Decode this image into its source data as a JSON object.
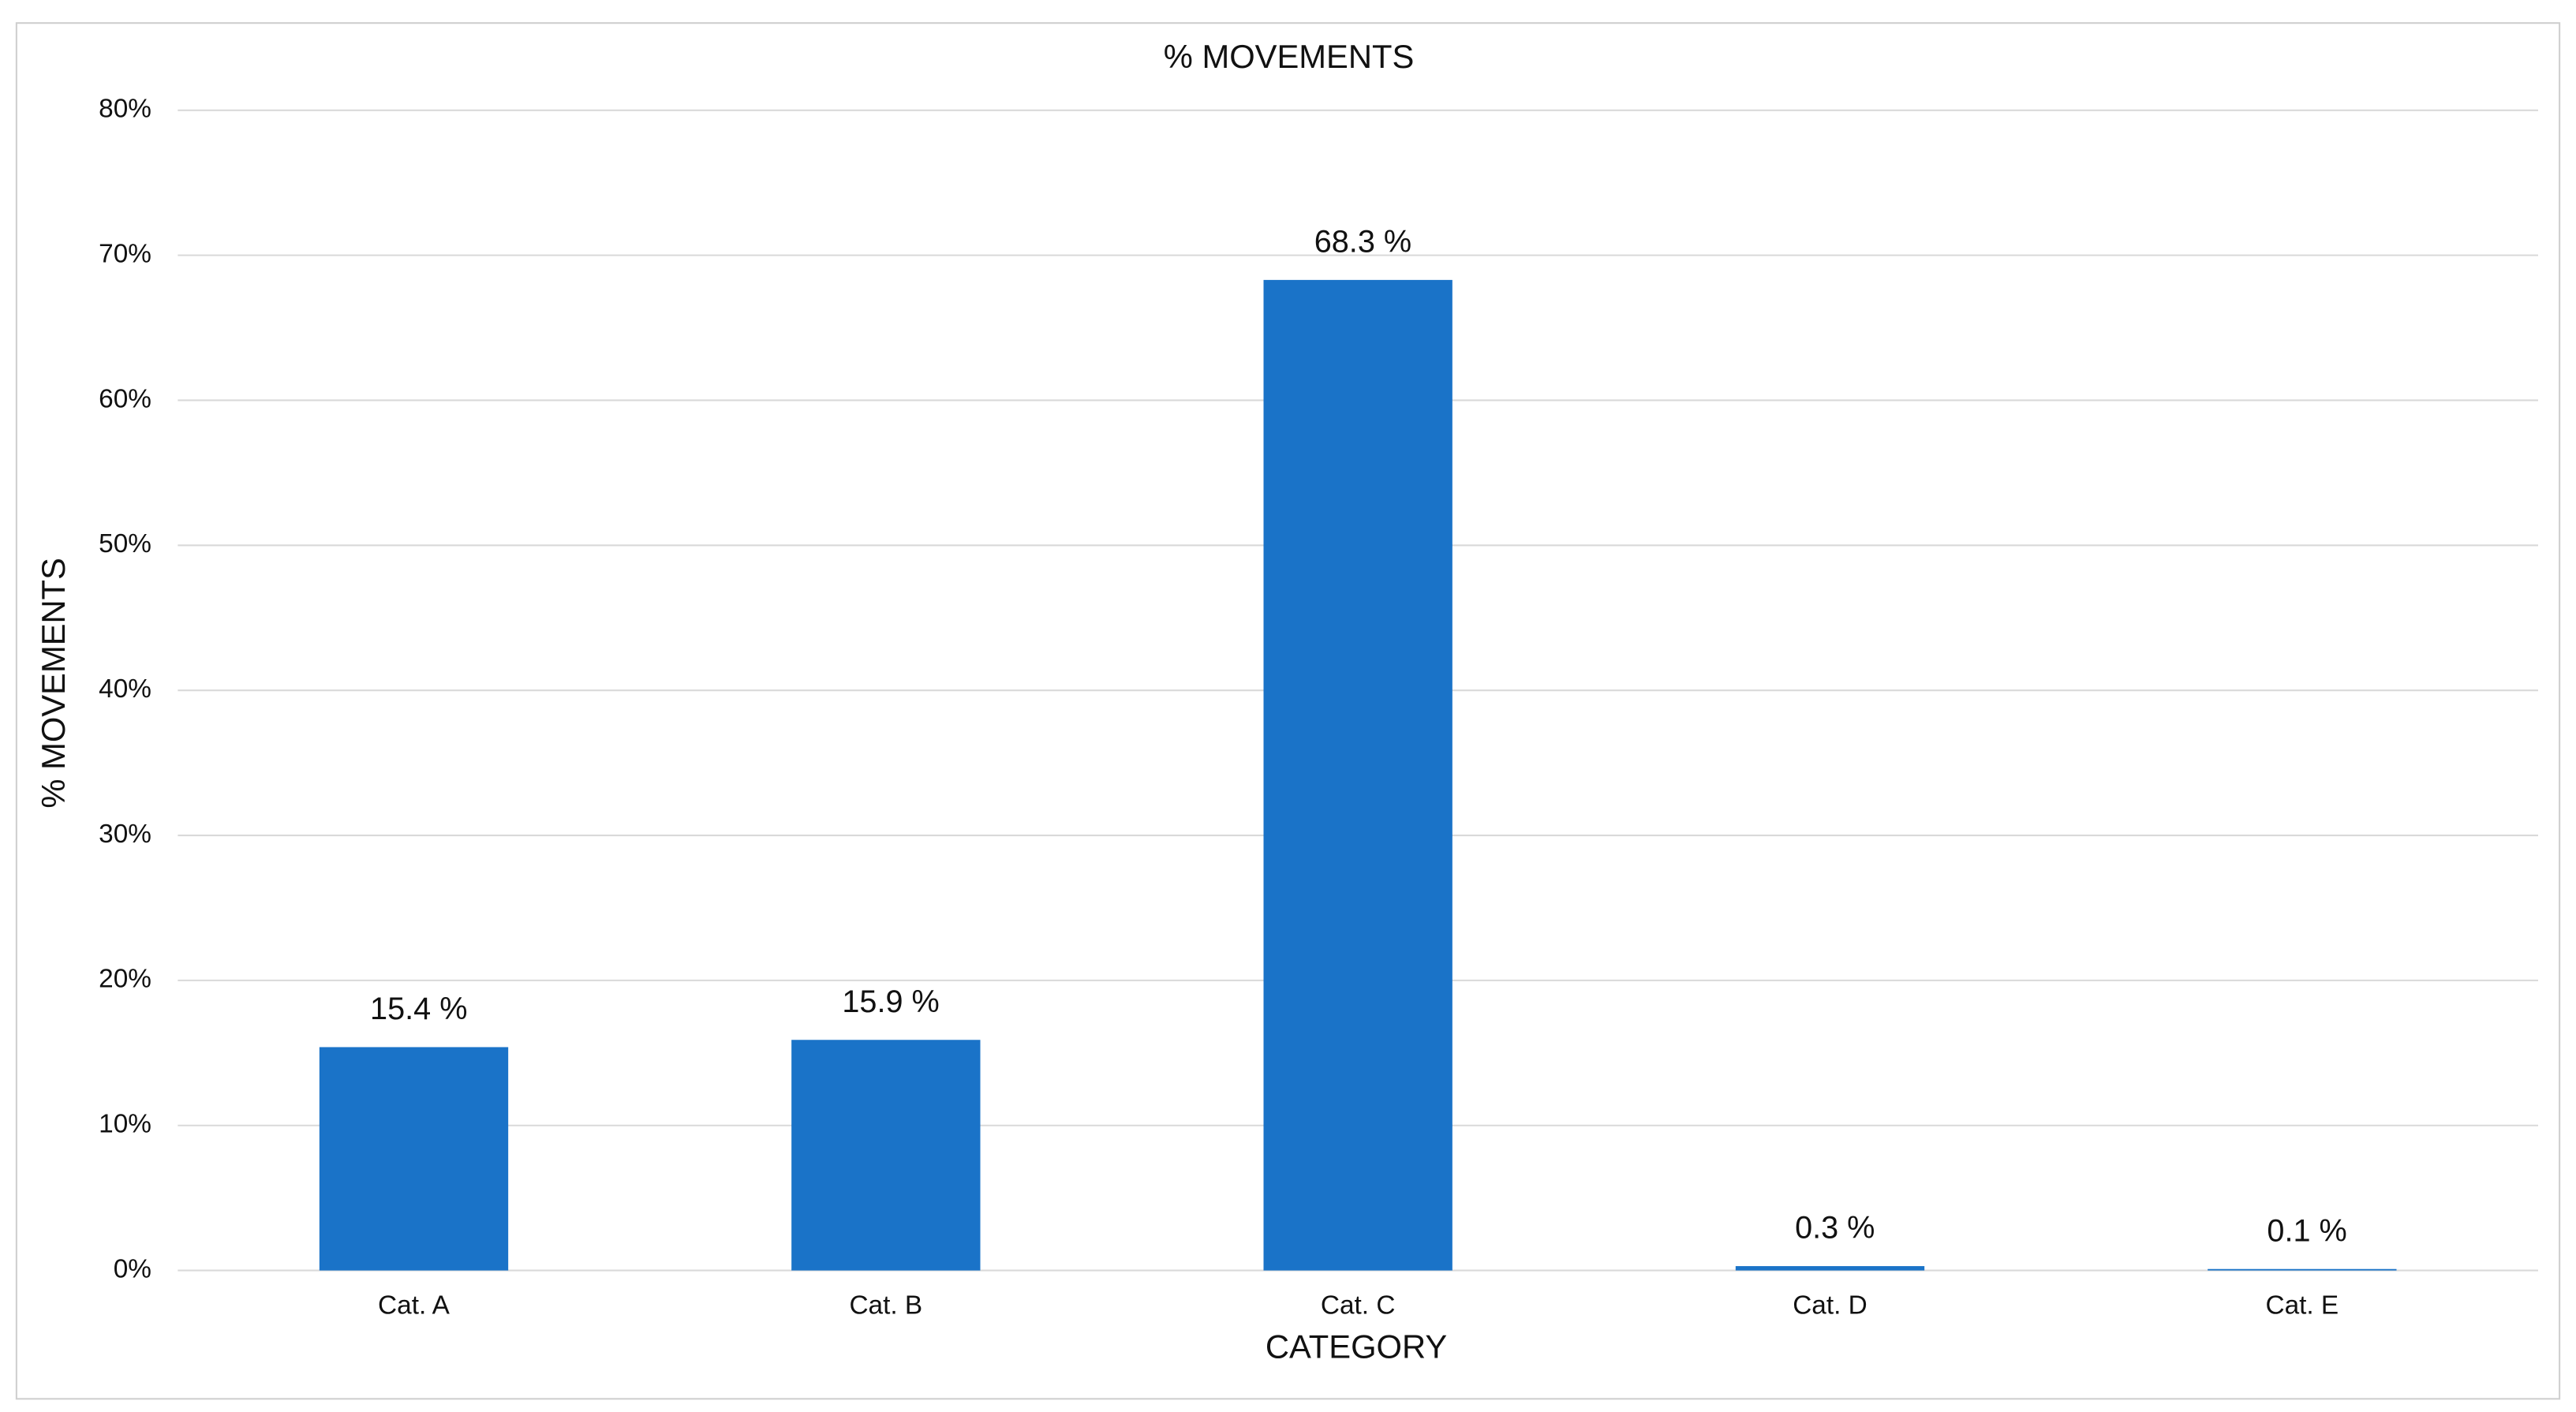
{
  "chart_data": {
    "type": "bar",
    "title": "% MOVEMENTS",
    "x_label": "CATEGORY",
    "y_label": "% MOVEMENTS",
    "categories": [
      "Cat. A",
      "Cat. B",
      "Cat. C",
      "Cat. D",
      "Cat. E"
    ],
    "values": [
      15.4,
      15.9,
      68.3,
      0.3,
      0.1
    ],
    "value_labels": [
      "15.4 %",
      "15.9 %",
      "68.3 %",
      "0.3 %",
      "0.1 %"
    ],
    "color": "#1a73c8",
    "ylim": [
      0,
      80
    ],
    "yticks": [
      {
        "value": 0,
        "label": "0%"
      },
      {
        "value": 10,
        "label": "10%"
      },
      {
        "value": 20,
        "label": "20%"
      },
      {
        "value": 30,
        "label": "30%"
      },
      {
        "value": 40,
        "label": "40%"
      },
      {
        "value": 50,
        "label": "50%"
      },
      {
        "value": 60,
        "label": "60%"
      },
      {
        "value": 70,
        "label": "70%"
      },
      {
        "value": 80,
        "label": "80%"
      }
    ],
    "grid": true
  }
}
